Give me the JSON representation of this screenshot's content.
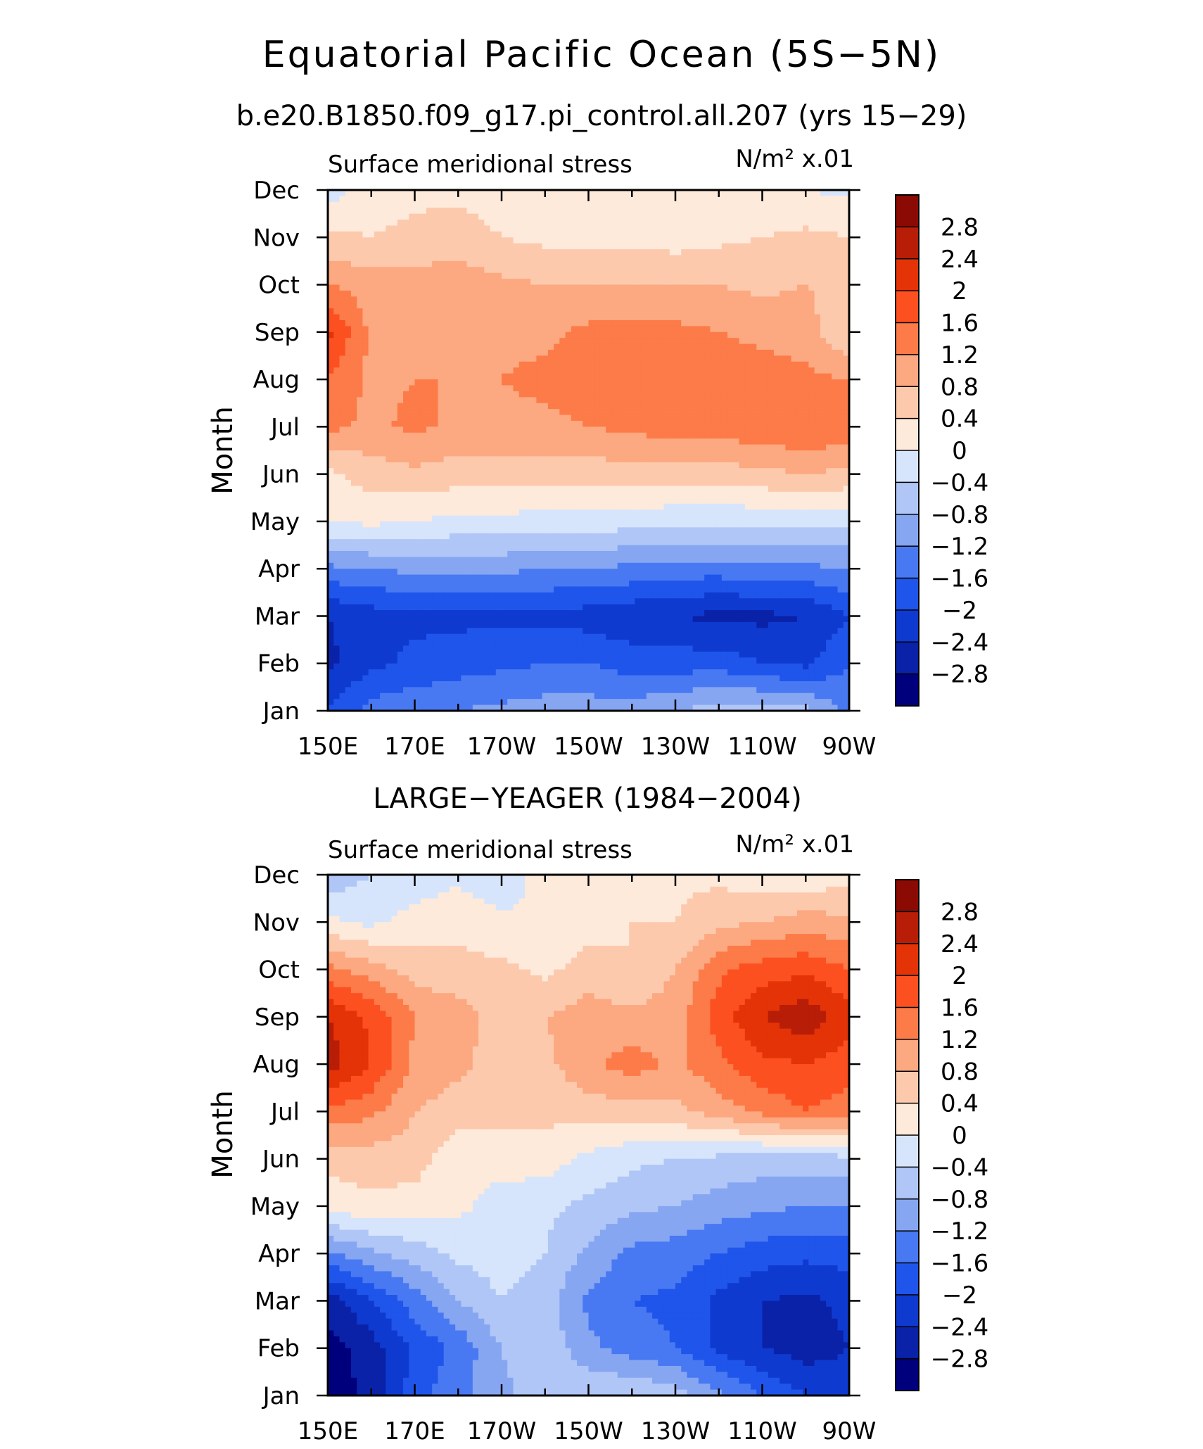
{
  "title": "Equatorial Pacific Ocean (5S−5N)",
  "colors": {
    "levels": [
      -2.8,
      -2.4,
      -2,
      -1.6,
      -1.2,
      -0.8,
      -0.4,
      0,
      0.4,
      0.8,
      1.2,
      1.6,
      2,
      2.4,
      2.8
    ],
    "level_labels": [
      "−2.8",
      "−2.4",
      "−2",
      "−1.6",
      "−1.2",
      "−0.8",
      "−0.4",
      "0",
      "0.4",
      "0.8",
      "1.2",
      "1.6",
      "2",
      "2.4",
      "2.8"
    ],
    "bins": [
      "#00007d",
      "#0a22a8",
      "#0f3ad0",
      "#1f55ea",
      "#4879f2",
      "#86a6f2",
      "#b0c6f7",
      "#d6e5fb",
      "#feeadb",
      "#fdc9ad",
      "#fca880",
      "#fc7b48",
      "#fc5021",
      "#e43307",
      "#b81d07",
      "#8c0a04"
    ]
  },
  "chart_data": [
    {
      "type": "heatmap",
      "title": "b.e20.B1850.f09_g17.pi_control.all.207 (yrs 15−29)",
      "left_label": "Surface meridional stress",
      "right_label": "N/m² x.01",
      "ylabel": "Month",
      "y_categories": [
        "Jan",
        "Feb",
        "Mar",
        "Apr",
        "May",
        "Jun",
        "Jul",
        "Aug",
        "Sep",
        "Oct",
        "Nov",
        "Dec"
      ],
      "x": [
        150,
        160,
        170,
        180,
        190,
        200,
        210,
        220,
        230,
        240,
        250,
        260,
        270
      ],
      "x_tick_values": [
        150,
        170,
        190,
        210,
        230,
        250,
        270
      ],
      "x_tick_labels": [
        "150E",
        "170E",
        "170W",
        "150W",
        "130W",
        "110W",
        "90W"
      ],
      "xlim": [
        150,
        270
      ],
      "values": [
        [
          -2.0,
          -1.4,
          -1.3,
          -1.2,
          -1.1,
          -1.0,
          -1.0,
          -1.0,
          -0.8,
          -0.6,
          -0.6,
          -0.7,
          -1.3
        ],
        [
          -2.5,
          -2.1,
          -1.9,
          -1.8,
          -1.7,
          -1.6,
          -1.6,
          -1.8,
          -1.8,
          -1.8,
          -2.0,
          -2.1,
          -1.6
        ],
        [
          -2.4,
          -2.2,
          -2.1,
          -2.1,
          -2.1,
          -2.1,
          -2.2,
          -2.3,
          -2.4,
          -2.5,
          -2.5,
          -2.4,
          -2.0
        ],
        [
          -1.3,
          -1.2,
          -1.1,
          -1.1,
          -1.1,
          -1.2,
          -1.2,
          -1.3,
          -1.4,
          -1.4,
          -1.3,
          -1.3,
          -1.2
        ],
        [
          0.0,
          0.1,
          0.0,
          -0.1,
          -0.1,
          -0.2,
          -0.2,
          -0.2,
          -0.3,
          -0.3,
          -0.3,
          -0.3,
          -0.3
        ],
        [
          0.3,
          0.6,
          0.7,
          0.6,
          0.6,
          0.6,
          0.6,
          0.6,
          0.6,
          0.6,
          0.7,
          0.8,
          0.7
        ],
        [
          1.3,
          1.1,
          1.3,
          1.1,
          1.1,
          1.1,
          1.2,
          1.3,
          1.4,
          1.4,
          1.5,
          1.6,
          1.5
        ],
        [
          1.6,
          1.1,
          1.2,
          1.2,
          1.2,
          1.3,
          1.4,
          1.5,
          1.4,
          1.4,
          1.4,
          1.3,
          1.2
        ],
        [
          2.1,
          1.1,
          1.1,
          1.1,
          1.1,
          1.1,
          1.3,
          1.3,
          1.3,
          1.2,
          1.1,
          1.0,
          0.4
        ],
        [
          1.2,
          1.0,
          1.0,
          1.0,
          0.9,
          0.8,
          0.8,
          0.8,
          0.8,
          0.8,
          0.7,
          0.8,
          0.6
        ],
        [
          0.5,
          0.4,
          0.5,
          0.6,
          0.4,
          0.3,
          0.3,
          0.3,
          0.2,
          0.3,
          0.4,
          0.5,
          0.4
        ],
        [
          -0.2,
          0.2,
          0.3,
          0.3,
          0.2,
          0.2,
          0.1,
          0.1,
          0.1,
          0.1,
          0.1,
          0.0,
          -0.1
        ]
      ]
    },
    {
      "type": "heatmap",
      "title": "LARGE−YEAGER (1984−2004)",
      "left_label": "Surface meridional stress",
      "right_label": "N/m² x.01",
      "ylabel": "Month",
      "y_categories": [
        "Jan",
        "Feb",
        "Mar",
        "Apr",
        "May",
        "Jun",
        "Jul",
        "Aug",
        "Sep",
        "Oct",
        "Nov",
        "Dec"
      ],
      "x": [
        150,
        160,
        170,
        180,
        190,
        200,
        210,
        220,
        230,
        240,
        250,
        260,
        270
      ],
      "x_tick_values": [
        150,
        170,
        190,
        210,
        230,
        250,
        270
      ],
      "x_tick_labels": [
        "150E",
        "170E",
        "170W",
        "150W",
        "130W",
        "110W",
        "90W"
      ],
      "xlim": [
        150,
        270
      ],
      "values": [
        [
          -3.0,
          -2.7,
          -1.8,
          -1.3,
          -0.9,
          -0.6,
          -0.4,
          -0.4,
          -0.6,
          -1.1,
          -1.6,
          -2.0,
          -2.2
        ],
        [
          -3.0,
          -2.6,
          -1.9,
          -1.5,
          -0.8,
          -0.5,
          -1.1,
          -1.4,
          -1.6,
          -2.1,
          -2.4,
          -2.6,
          -2.4
        ],
        [
          -2.6,
          -2.0,
          -1.4,
          -0.8,
          -0.4,
          -0.6,
          -1.3,
          -1.6,
          -1.7,
          -2.1,
          -2.4,
          -2.5,
          -2.3
        ],
        [
          -1.3,
          -0.9,
          -0.6,
          -0.3,
          -0.2,
          -0.4,
          -0.9,
          -1.3,
          -1.4,
          -1.6,
          -1.8,
          -1.9,
          -1.8
        ],
        [
          0.2,
          0.3,
          0.2,
          0.1,
          -0.2,
          -0.3,
          -0.5,
          -0.7,
          -0.8,
          -1.0,
          -1.1,
          -1.2,
          -1.2
        ],
        [
          0.5,
          0.6,
          0.6,
          0.1,
          0.2,
          0.2,
          -0.1,
          -0.3,
          -0.4,
          -0.5,
          -0.6,
          -0.6,
          -0.5
        ],
        [
          1.5,
          1.3,
          0.8,
          0.6,
          0.5,
          0.5,
          0.6,
          0.6,
          0.7,
          1.0,
          1.3,
          1.6,
          1.4
        ],
        [
          2.6,
          2.0,
          1.1,
          0.9,
          0.6,
          0.7,
          1.1,
          1.4,
          1.1,
          1.5,
          1.9,
          2.0,
          1.8
        ],
        [
          2.4,
          1.9,
          1.2,
          1.0,
          0.6,
          0.8,
          1.0,
          0.9,
          1.0,
          1.8,
          2.4,
          2.7,
          2.2
        ],
        [
          1.3,
          1.0,
          0.6,
          0.5,
          0.5,
          0.3,
          0.6,
          0.4,
          0.8,
          1.5,
          1.8,
          1.9,
          1.6
        ],
        [
          0.1,
          -0.1,
          0.2,
          0.3,
          0.1,
          0.0,
          0.2,
          0.4,
          0.4,
          0.7,
          0.8,
          1.0,
          0.9
        ],
        [
          -0.7,
          -0.4,
          -0.3,
          -0.1,
          -0.3,
          0.2,
          0.2,
          0.3,
          0.3,
          0.3,
          0.1,
          0.1,
          0.2
        ]
      ]
    }
  ]
}
